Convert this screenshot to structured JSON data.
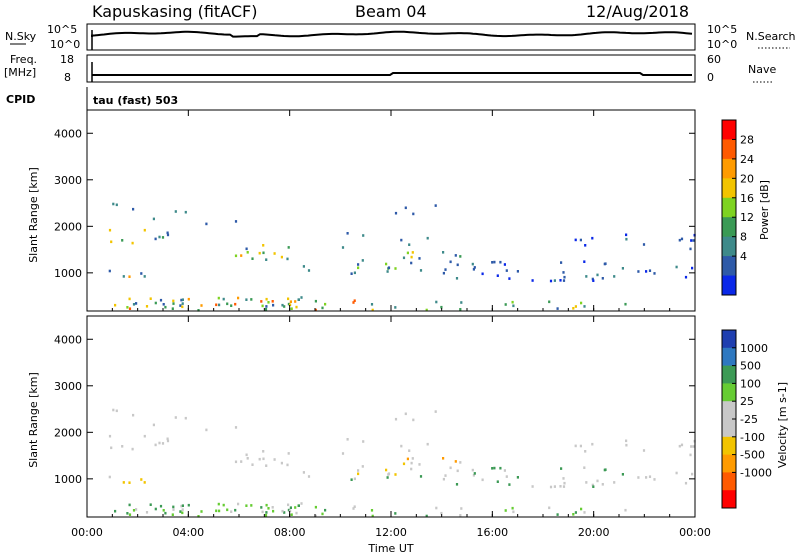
{
  "header": {
    "station": "Kapuskasing (fitACF)",
    "beam": "Beam 04",
    "date": "12/Aug/2018"
  },
  "strip_panels": {
    "nsky_label": "N.Sky",
    "nsky_ticks": [
      "10^5",
      "10^0"
    ],
    "nsearch_label": "N.Search",
    "nsearch_ticks": [
      "10^5",
      "10^0"
    ],
    "freq_label": "Freq.",
    "freq_unit": "[MHz]",
    "freq_ticks": [
      "18",
      "8"
    ],
    "nave_label": "Nave",
    "nave_ticks": [
      "60",
      "0"
    ],
    "cpid_label": "CPID",
    "cpid_value": "tau (fast) 503"
  },
  "chart_data": [
    {
      "type": "heatmap",
      "parameter": "power",
      "ylabel": "Slant Range [km]",
      "yticks": [
        "4000",
        "3000",
        "2000",
        "1000"
      ],
      "ylim": [
        180,
        4500
      ],
      "xlim_hours": [
        0,
        24
      ],
      "colorbar_label": "Power [dB]",
      "colorbar_ticks": [
        "28",
        "24",
        "20",
        "16",
        "12",
        "8",
        "4"
      ],
      "colorbar_colors": [
        "#ff0000",
        "#ff5a00",
        "#ff9b00",
        "#f2c400",
        "#7ed321",
        "#3a9a55",
        "#3e8a8a",
        "#2e5aa8",
        "#0a28e8"
      ]
    },
    {
      "type": "heatmap",
      "parameter": "velocity",
      "ylabel": "Slant Range [km]",
      "yticks": [
        "4000",
        "3000",
        "2000",
        "1000"
      ],
      "ylim": [
        180,
        4500
      ],
      "xlim_hours": [
        0,
        24
      ],
      "colorbar_label": "Velocity [m s-1]",
      "colorbar_ticks": [
        "1000",
        "500",
        "100",
        "25",
        "-25",
        "-100",
        "-500",
        "-1000"
      ],
      "colorbar_colors": [
        "#1f3fb0",
        "#2e78c0",
        "#3c9a55",
        "#66cc33",
        "#c8c8c8",
        "#c8c8c8",
        "#f2c400",
        "#ff9b00",
        "#ff5a00",
        "#ff0000"
      ]
    }
  ],
  "time_axis": {
    "xlabel": "Time UT",
    "ticks": [
      "00:00",
      "04:00",
      "08:00",
      "12:00",
      "16:00",
      "20:00",
      "00:00"
    ]
  }
}
